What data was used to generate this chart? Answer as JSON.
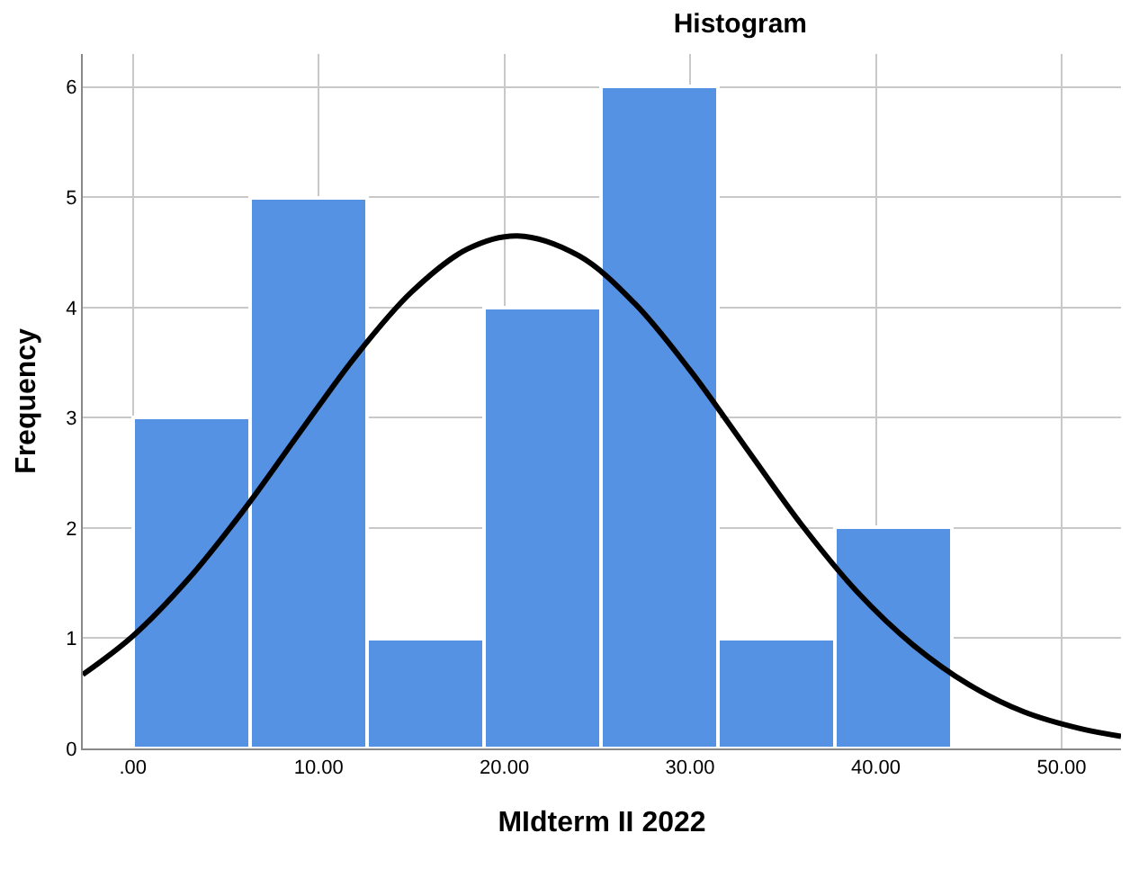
{
  "chart_data": {
    "type": "histogram",
    "title": "Histogram",
    "xlabel": "MIdterm II 2022",
    "ylabel": "Frequency",
    "bins": [
      0,
      6.3,
      12.6,
      18.9,
      25.2,
      31.5,
      37.8,
      44.1
    ],
    "series": [
      {
        "color": "#5592e4",
        "values": [
          3,
          5,
          1,
          4,
          6,
          1,
          2
        ]
      },
      {
        "type": "line",
        "color": "#000000",
        "line_style": "solid",
        "marker": "none",
        "x": [
          -2.7,
          0,
          3,
          6,
          9,
          12,
          15,
          18,
          20.7,
          24,
          27,
          30,
          33,
          36,
          39,
          42,
          45,
          48,
          51,
          53.2
        ],
        "values": [
          0.67,
          1.02,
          1.54,
          2.17,
          2.87,
          3.56,
          4.14,
          4.53,
          4.65,
          4.47,
          4.04,
          3.43,
          2.73,
          2.03,
          1.42,
          0.94,
          0.58,
          0.33,
          0.18,
          0.11
        ]
      }
    ],
    "xlim": [
      -2.7,
      53.2
    ],
    "xticks": [
      {
        "value": 0,
        "label": ".00"
      },
      {
        "value": 10,
        "label": "10.00"
      },
      {
        "value": 20,
        "label": "20.00"
      },
      {
        "value": 30,
        "label": "30.00"
      },
      {
        "value": 40,
        "label": "40.00"
      },
      {
        "value": 50,
        "label": "50.00"
      }
    ],
    "ylim": [
      0,
      6.3
    ],
    "yticks": [
      0,
      1,
      2,
      3,
      4,
      5,
      6
    ],
    "grid": true
  }
}
